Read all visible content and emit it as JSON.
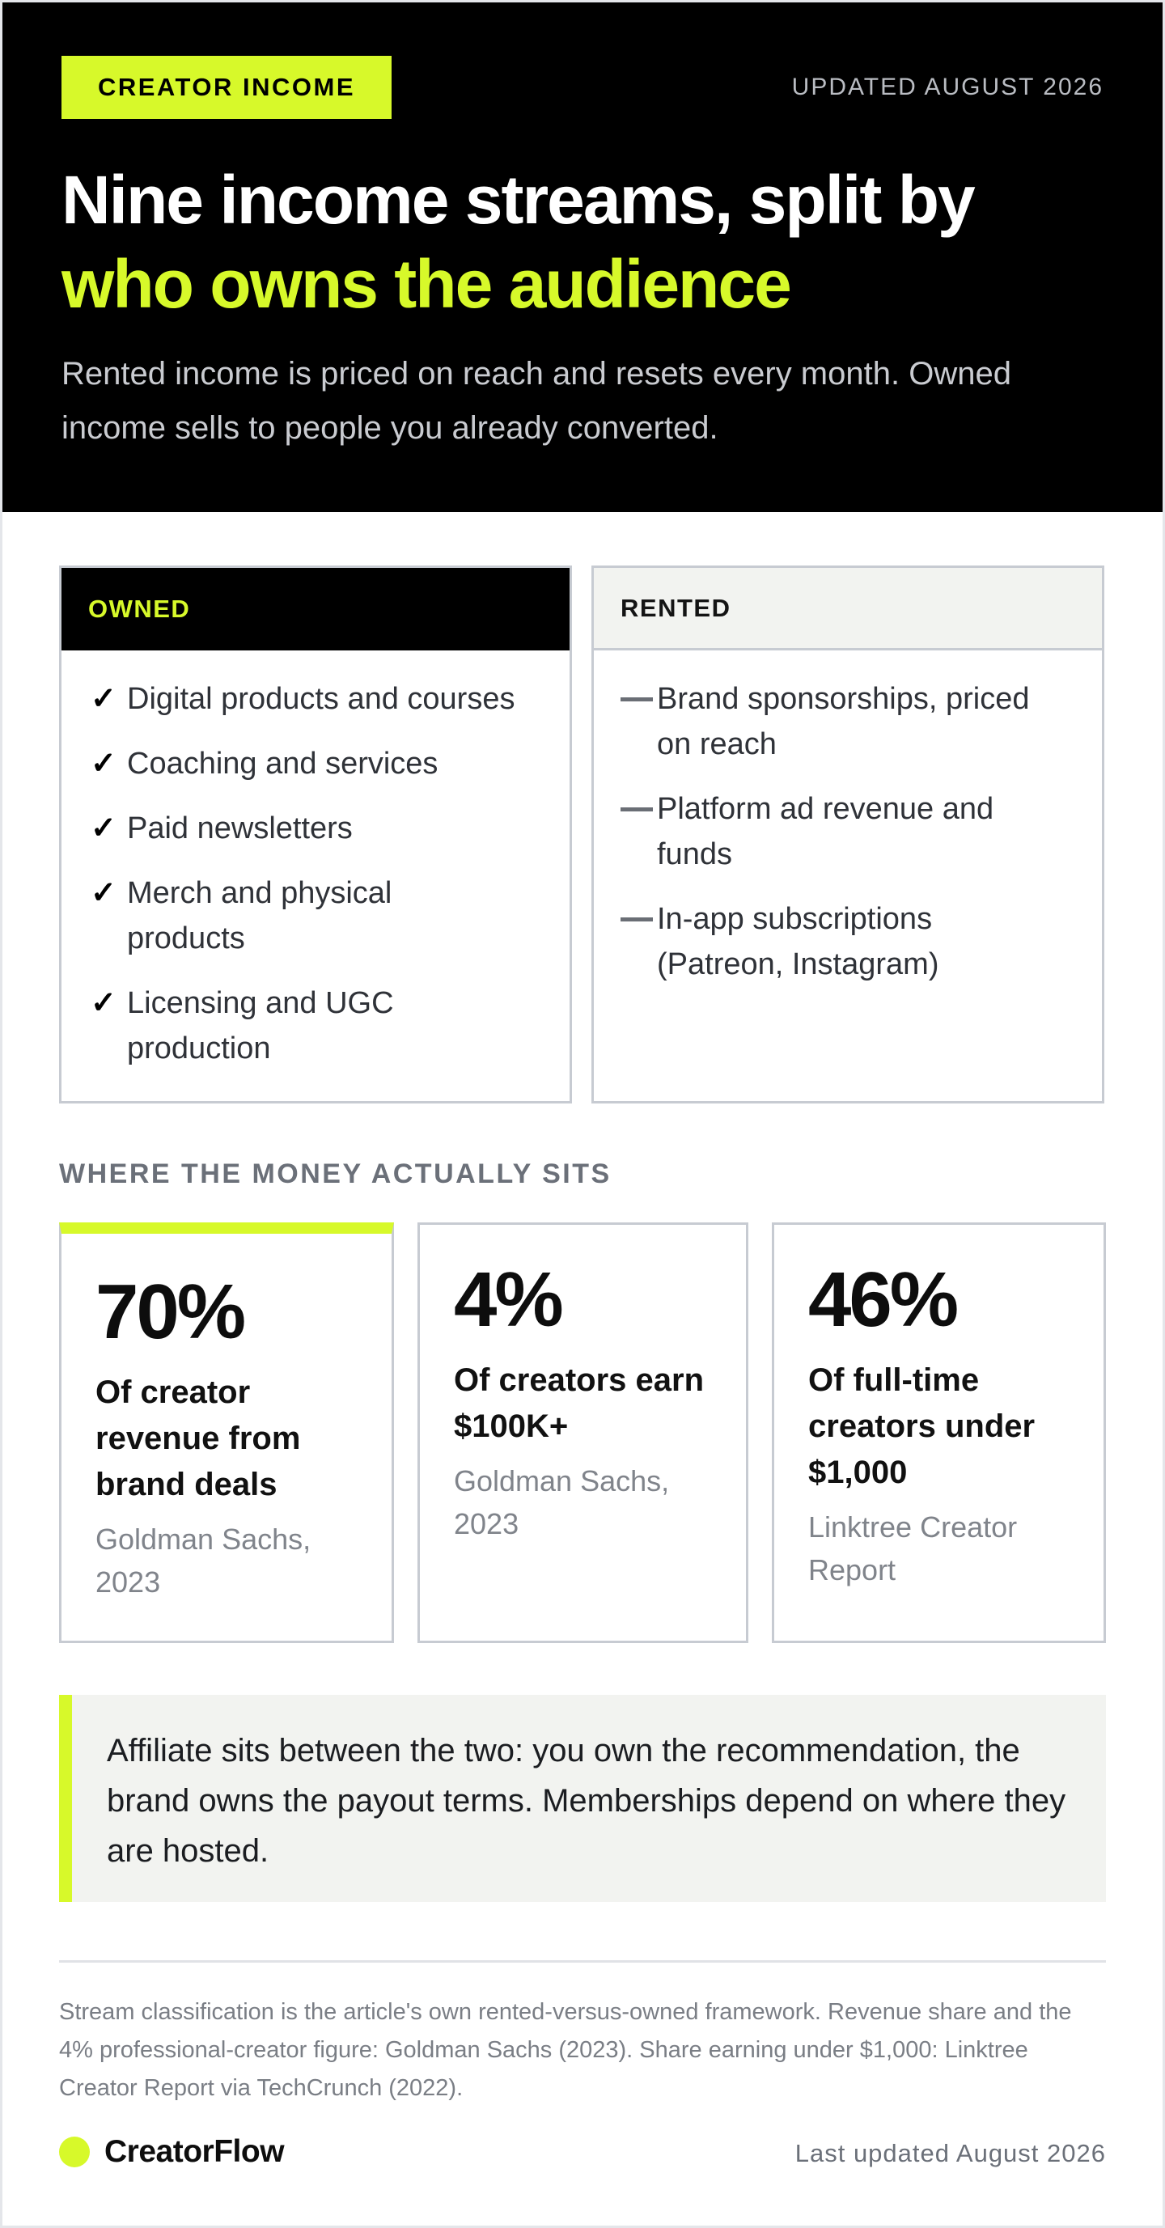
{
  "header": {
    "badge": "CREATOR INCOME",
    "updated": "UPDATED AUGUST 2026",
    "headline_line1": "Nine income streams, split by",
    "headline_line2": "who owns the audience",
    "lede": "Rented income is priced on reach and resets every month. Owned income sells to people you already converted.",
    "accent_color": "#d7f92a"
  },
  "owned": {
    "title": "OWNED",
    "marker_icon": "check-icon",
    "items": [
      "Digital products and courses",
      "Coaching and services",
      "Paid newsletters",
      "Merch and physical products",
      "Licensing and UGC production"
    ]
  },
  "rented": {
    "title": "RENTED",
    "marker_icon": "dash-icon",
    "items": [
      "Brand sponsorships, priced on reach",
      "Platform ad revenue and funds",
      "In-app subscriptions (Patreon, Instagram)"
    ]
  },
  "stats": {
    "section_label": "WHERE THE MONEY ACTUALLY SITS",
    "items": [
      {
        "value": "70%",
        "label": "Of creator revenue from brand deals",
        "source": "Goldman Sachs, 2023"
      },
      {
        "value": "4%",
        "label": "Of creators earn $100K+",
        "source": "Goldman Sachs, 2023"
      },
      {
        "value": "46%",
        "label": "Of full-time creators under $1,000",
        "source": "Linktree Creator Report"
      }
    ]
  },
  "callout": {
    "text": "Affiliate sits between the two: you own the recommendation, the brand owns the payout terms. Memberships depend on where they are hosted."
  },
  "footer": {
    "footnote": "Stream classification is the article's own rented-versus-owned framework. Revenue share and the 4% professional-creator figure: Goldman Sachs (2023). Share earning under $1,000: Linktree Creator Report via TechCrunch (2022).",
    "brand": "CreatorFlow",
    "last_updated": "Last updated August 2026"
  }
}
